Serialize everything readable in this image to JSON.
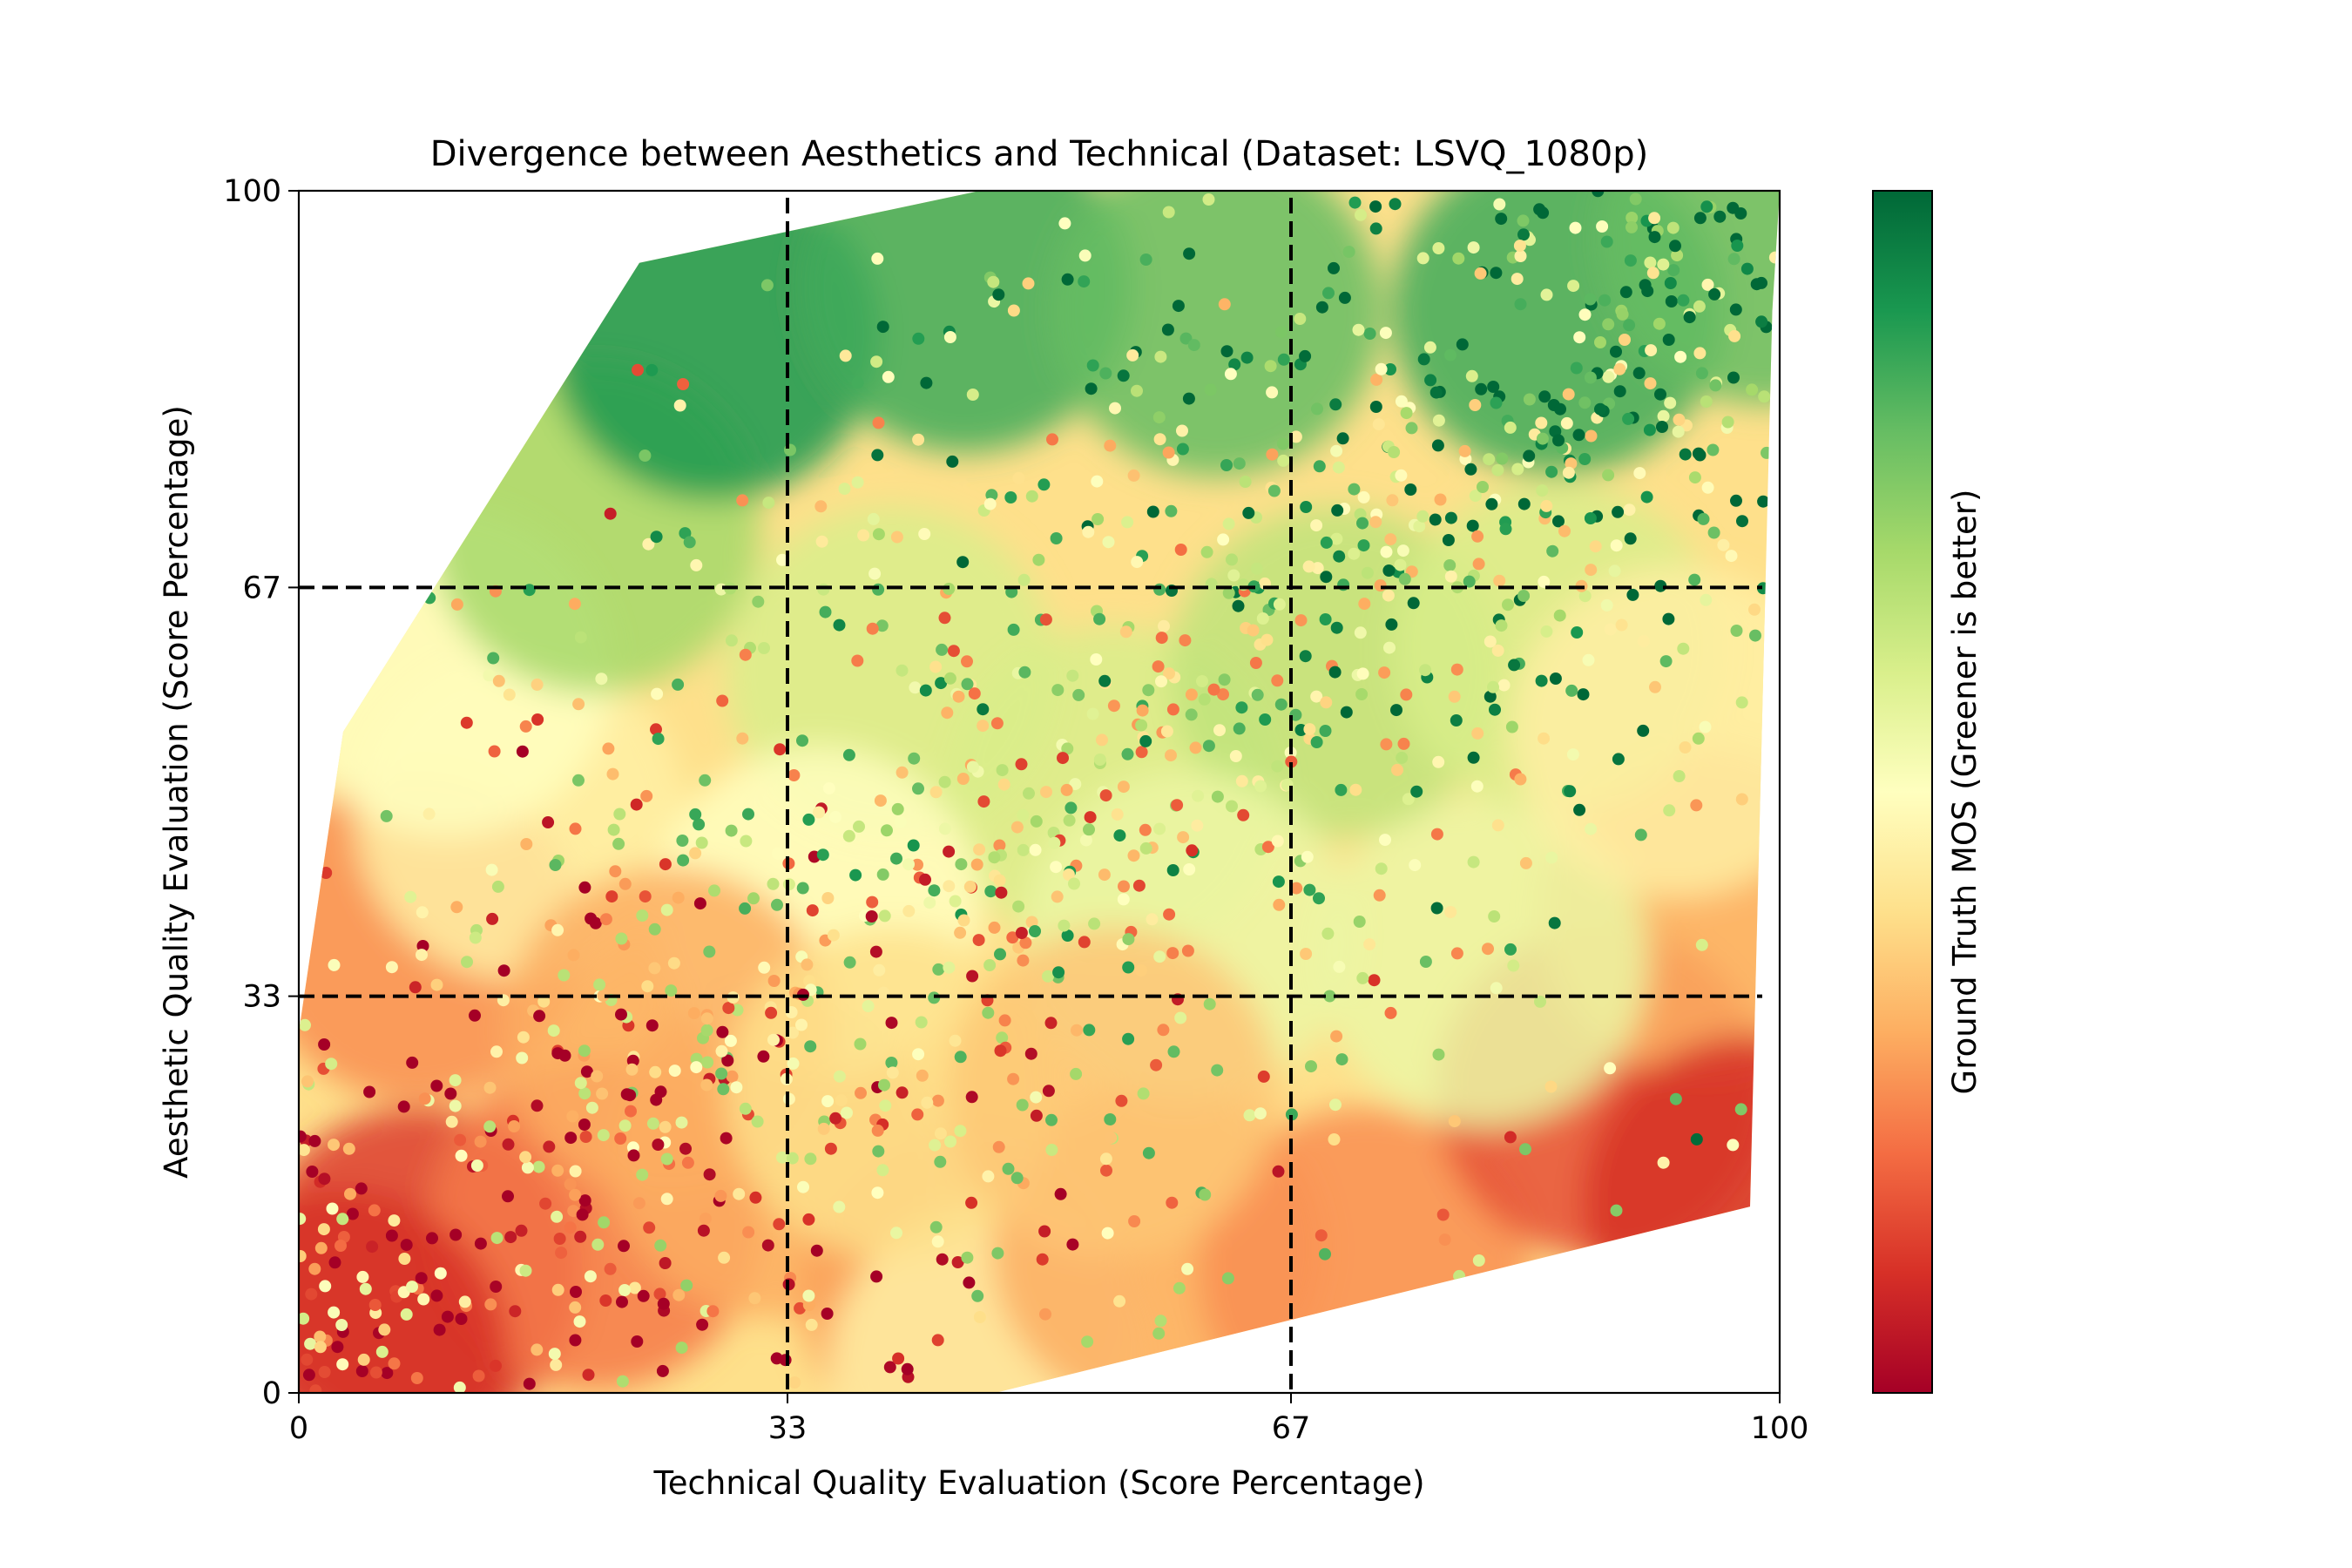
{
  "chart_data": {
    "type": "heatmap",
    "subtype": "tricontourf-scatter",
    "title": "Divergence between Aesthetics and Technical (Dataset: LSVQ_1080p)",
    "xlabel": "Technical Quality Evaluation (Score Percentage)",
    "ylabel": "Aesthetic Quality Evaluation (Score Percentage)",
    "xlim": [
      0,
      100
    ],
    "ylim": [
      0,
      100
    ],
    "xticks": [
      "0",
      "33",
      "67",
      "100"
    ],
    "yticks": [
      "0",
      "33",
      "67",
      "100"
    ],
    "xtick_values": [
      0,
      33,
      67,
      100
    ],
    "ytick_values": [
      0,
      33,
      67,
      100
    ],
    "threshold_lines": {
      "x": [
        33,
        67
      ],
      "y": [
        33,
        67
      ],
      "style": "dashed",
      "color": "#000000"
    },
    "grid": false,
    "colorbar": {
      "label": "Ground Truth MOS (Greener is better)",
      "colormap": "RdYlGn",
      "colors": [
        "#a50026",
        "#d73027",
        "#f46d43",
        "#fdae61",
        "#fee08b",
        "#ffffbf",
        "#d9ef8b",
        "#a6d96a",
        "#66bd63",
        "#1a9850",
        "#006837"
      ]
    },
    "hull": [
      [
        0,
        0
      ],
      [
        47,
        0
      ],
      [
        98,
        15.5
      ],
      [
        99.5,
        90
      ],
      [
        100,
        100
      ],
      [
        46,
        100
      ],
      [
        23,
        94
      ],
      [
        3,
        55
      ],
      [
        0,
        30
      ]
    ],
    "regions": [
      {
        "x": 8,
        "y": 10,
        "mos": 0.12
      },
      {
        "x": 20,
        "y": 14,
        "mos": 0.22
      },
      {
        "x": 32,
        "y": 20,
        "mos": 0.3
      },
      {
        "x": 45,
        "y": 8,
        "mos": 0.28
      },
      {
        "x": 47,
        "y": 2,
        "mos": 0.45
      },
      {
        "x": 58,
        "y": 12,
        "mos": 0.3
      },
      {
        "x": 72,
        "y": 10,
        "mos": 0.25
      },
      {
        "x": 88,
        "y": 25,
        "mos": 0.15
      },
      {
        "x": 95,
        "y": 40,
        "mos": 0.3
      },
      {
        "x": 80,
        "y": 36,
        "mos": 0.55
      },
      {
        "x": 8,
        "y": 38,
        "mos": 0.25
      },
      {
        "x": 15,
        "y": 48,
        "mos": 0.45
      },
      {
        "x": 10,
        "y": 60,
        "mos": 0.5
      },
      {
        "x": 20,
        "y": 72,
        "mos": 0.7
      },
      {
        "x": 28,
        "y": 88,
        "mos": 0.9
      },
      {
        "x": 45,
        "y": 92,
        "mos": 0.85
      },
      {
        "x": 62,
        "y": 90,
        "mos": 0.8
      },
      {
        "x": 85,
        "y": 90,
        "mos": 0.85
      },
      {
        "x": 40,
        "y": 60,
        "mos": 0.6
      },
      {
        "x": 55,
        "y": 50,
        "mos": 0.6
      },
      {
        "x": 70,
        "y": 60,
        "mos": 0.65
      },
      {
        "x": 85,
        "y": 62,
        "mos": 0.6
      },
      {
        "x": 93,
        "y": 55,
        "mos": 0.45
      },
      {
        "x": 60,
        "y": 38,
        "mos": 0.55
      },
      {
        "x": 35,
        "y": 40,
        "mos": 0.5
      },
      {
        "x": 25,
        "y": 30,
        "mos": 0.3
      },
      {
        "x": 40,
        "y": 25,
        "mos": 0.4
      },
      {
        "x": 55,
        "y": 25,
        "mos": 0.35
      },
      {
        "x": 3,
        "y": 3,
        "mos": 0.1
      },
      {
        "x": 98,
        "y": 16,
        "mos": 0.1
      },
      {
        "x": 99,
        "y": 96,
        "mos": 0.8
      }
    ]
  }
}
